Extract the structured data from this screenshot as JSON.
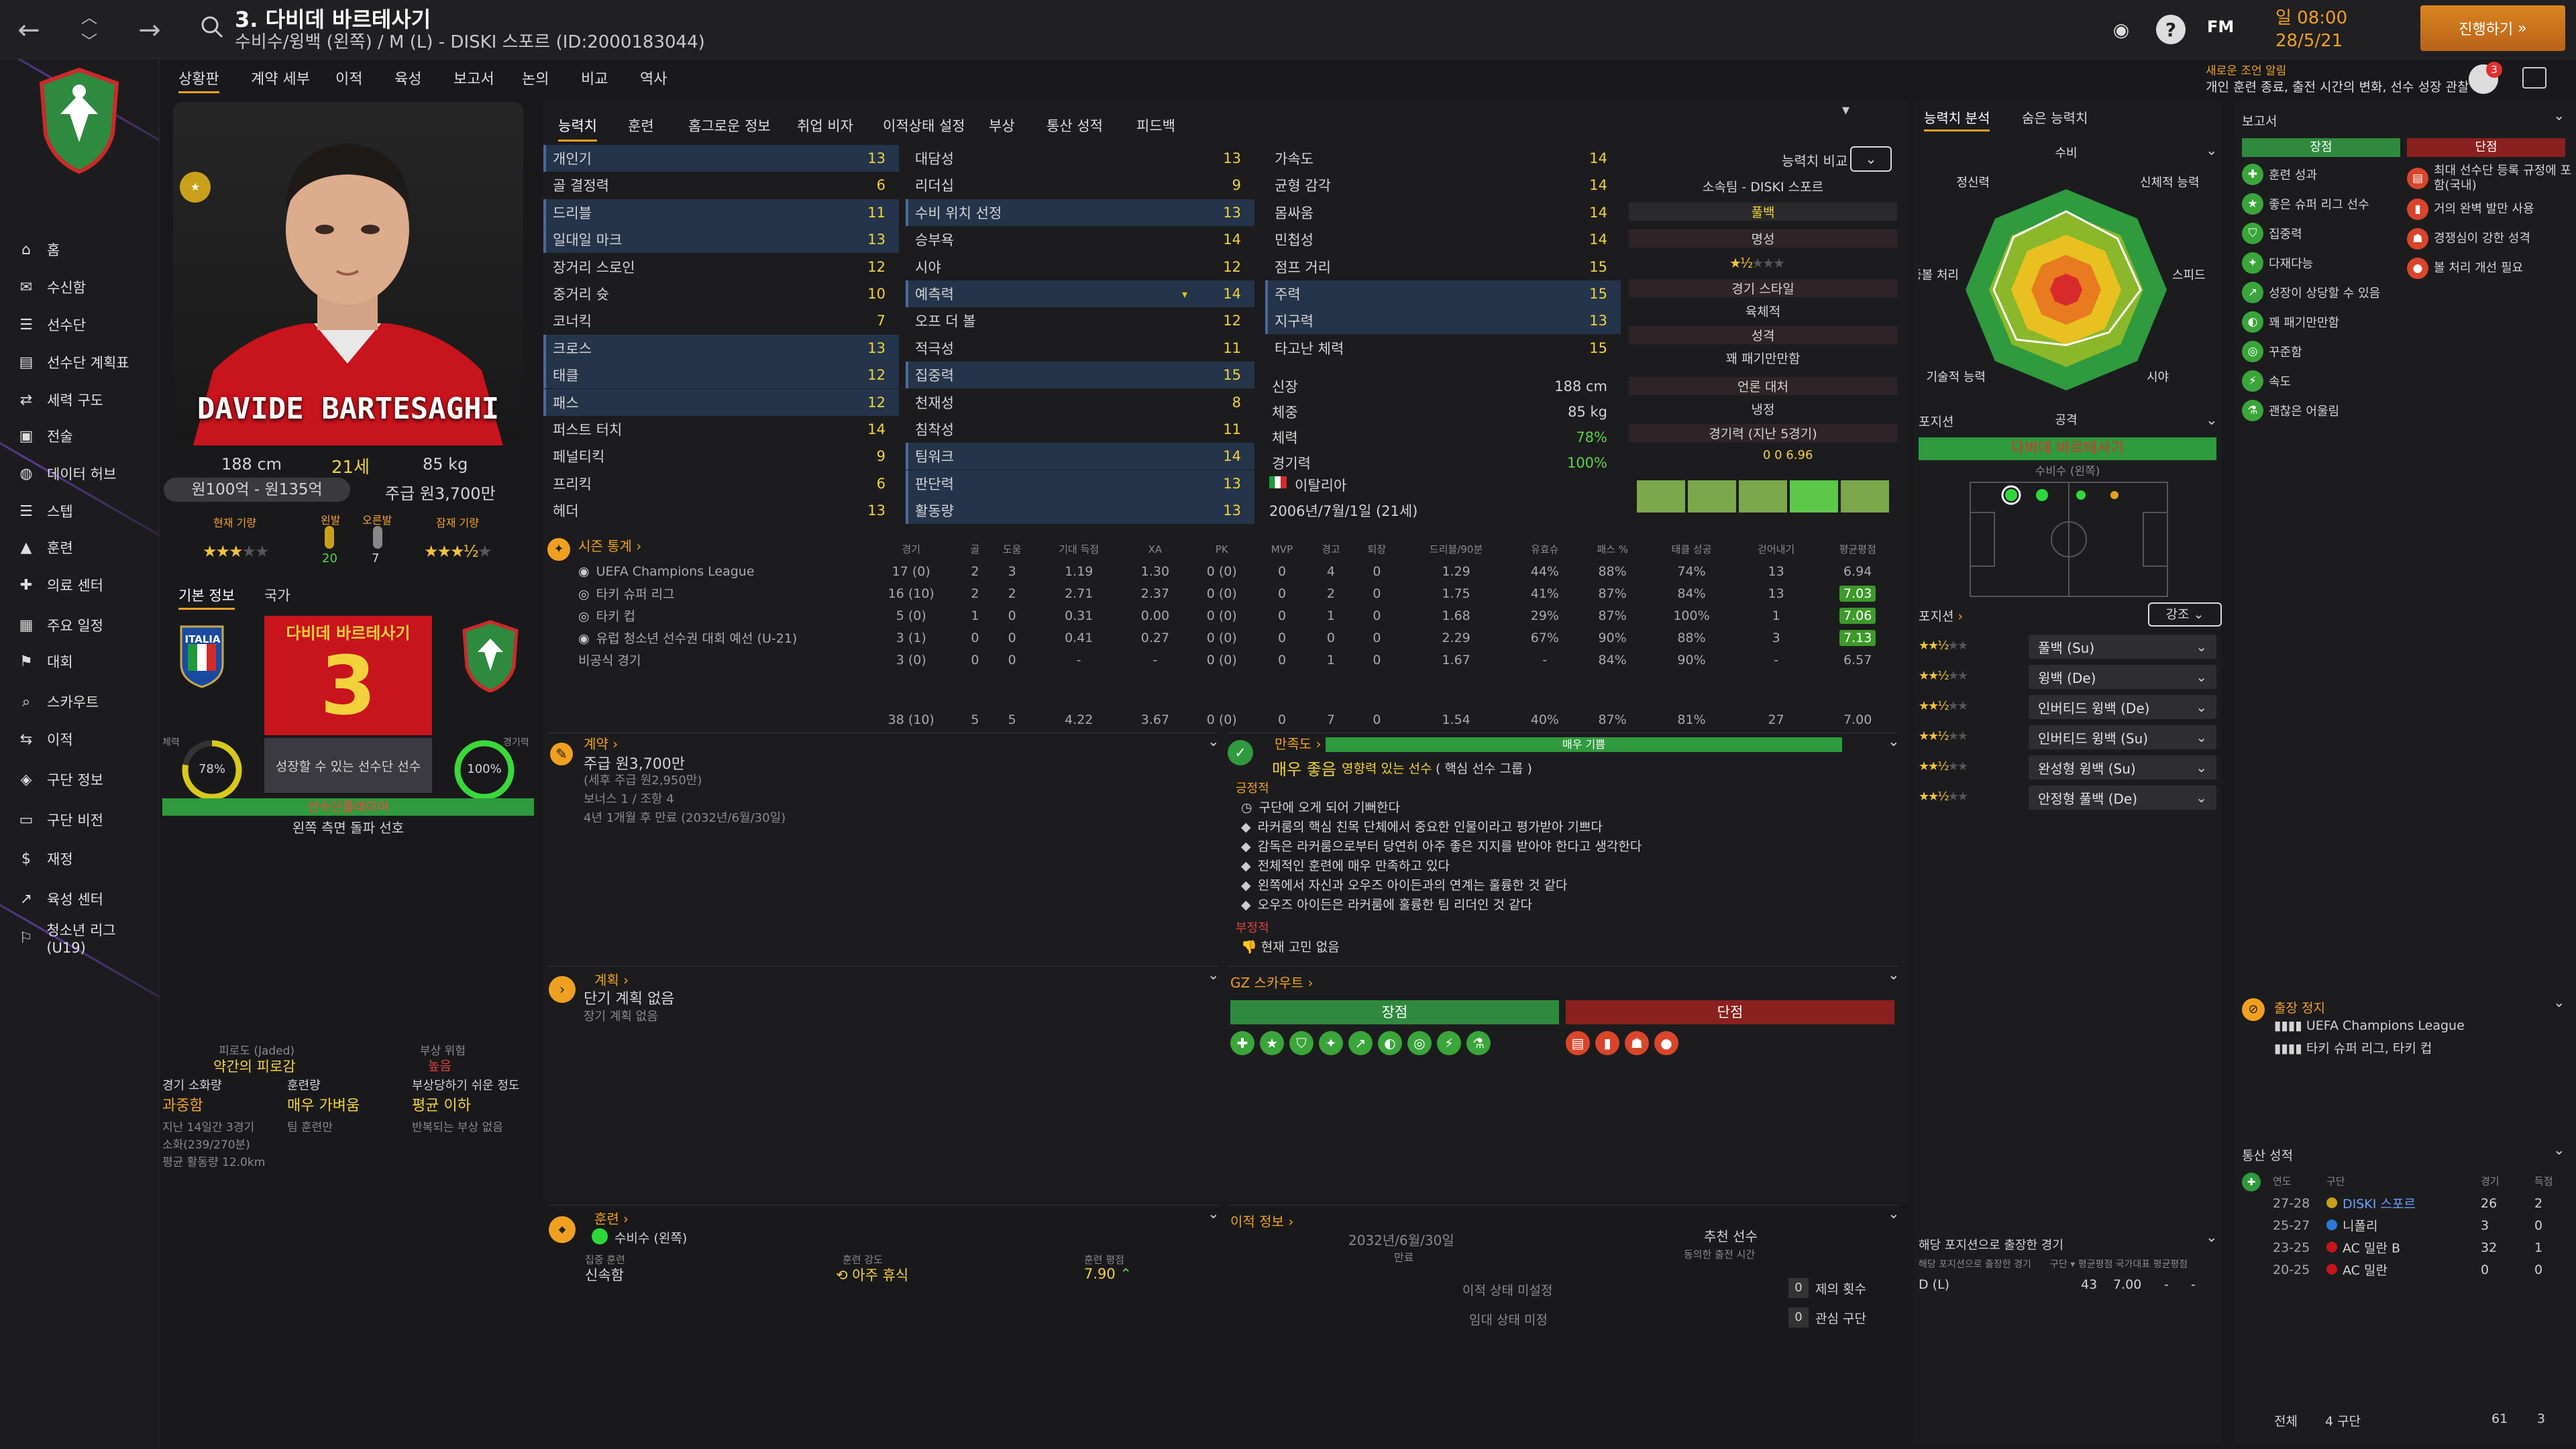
{
  "header": {
    "title": "3. 다비데 바르테사기",
    "subtitle": "수비수/윙백 (왼쪽) / M (L) - DISKI 스포르 (ID:2000183044)",
    "date_day": "일 08:00",
    "date": "28/5/21",
    "continue_label": "진행하기",
    "fm_label": "FM",
    "notice_title": "새로운 조언 알림",
    "notice_text": "개인 훈련 종료, 출전 시간의 변화, 선수 성장 관찰",
    "notif_count": "3"
  },
  "menu": [
    "상황판",
    "계약 세부",
    "이적",
    "육성",
    "보고서",
    "논의",
    "비교",
    "역사"
  ],
  "sidebar": [
    "홈",
    "수신함",
    "선수단",
    "선수단 계획표",
    "세력 구도",
    "전술",
    "데이터 허브",
    "스텝",
    "훈련",
    "의료 센터",
    "주요 일정",
    "대회",
    "스카우트",
    "이적",
    "구단 정보",
    "구단 비전",
    "재정",
    "육성 센터",
    "청소년 리그 (U19)"
  ],
  "player": {
    "name_en": "DAVIDE BARTESAGHI",
    "height": "188 cm",
    "age": "21세",
    "weight": "85 kg",
    "value": "원100억 - 원135억",
    "wage": "주급 원3,700만",
    "cur_ability": "현재 기량",
    "pot_ability": "잠재 기량",
    "left_foot_label": "왼발",
    "right_foot_label": "오른발",
    "left_foot": "20",
    "right_foot": "7",
    "tab_basic": "기본 정보",
    "tab_nation": "국가",
    "nation": "ITALIA",
    "shirt_name": "다비데 바르테사기",
    "shirt_number": "3",
    "stamina_label": "체력",
    "stamina": "78%",
    "sharp_label": "경기력",
    "sharp": "100%",
    "desc": "성장할 수 있는 선수단 선수",
    "role": "선수단플레이어",
    "pref": "왼쪽 측면 돌파 선호",
    "fatigue_label": "피로도 (Jaded)",
    "fatigue_val": "약간의 피로감",
    "injury_label": "부상 위험",
    "injury_val": "높음",
    "load_label": "경기 소화량",
    "load_val": "과중함",
    "train_label": "훈련량",
    "train_val": "매우 가벼움",
    "prone_label": "부상당하기 쉬운 정도",
    "prone_val": "평균 이하",
    "load_sub1": "지난 14일간 3경기",
    "load_sub2": "소화(239/270분)",
    "load_sub3": "평균 활동량 12.0km",
    "train_sub": "팀 훈련만",
    "prone_sub": "반복되는 부상 없음"
  },
  "attr_tabs": [
    "능력치",
    "훈련",
    "홈그로운 정보",
    "취업 비자",
    "이적상태 설정",
    "부상",
    "통산 성적",
    "피드백"
  ],
  "attrs_col1": [
    [
      "개인기",
      "13"
    ],
    [
      "골 결정력",
      "6"
    ],
    [
      "드리블",
      "11"
    ],
    [
      "일대일 마크",
      "13"
    ],
    [
      "장거리 스로인",
      "12"
    ],
    [
      "중거리 슛",
      "10"
    ],
    [
      "코너킥",
      "7"
    ],
    [
      "크로스",
      "13"
    ],
    [
      "태클",
      "12"
    ],
    [
      "패스",
      "12"
    ],
    [
      "퍼스트 터치",
      "14"
    ],
    [
      "페널티킥",
      "9"
    ],
    [
      "프리킥",
      "6"
    ],
    [
      "헤더",
      "13"
    ]
  ],
  "attrs_col2": [
    [
      "대담성",
      "13"
    ],
    [
      "리더십",
      "9"
    ],
    [
      "수비 위치 선정",
      "13"
    ],
    [
      "승부욕",
      "14"
    ],
    [
      "시야",
      "12"
    ],
    [
      "예측력",
      "14"
    ],
    [
      "오프 더 볼",
      "12"
    ],
    [
      "적극성",
      "11"
    ],
    [
      "집중력",
      "15"
    ],
    [
      "천재성",
      "8"
    ],
    [
      "침착성",
      "11"
    ],
    [
      "팀워크",
      "14"
    ],
    [
      "판단력",
      "13"
    ],
    [
      "활동량",
      "13"
    ]
  ],
  "attrs_col3": [
    [
      "가속도",
      "14"
    ],
    [
      "균형 감각",
      "14"
    ],
    [
      "몸싸움",
      "14"
    ],
    [
      "민첩성",
      "14"
    ],
    [
      "점프 거리",
      "15"
    ],
    [
      "주력",
      "15"
    ],
    [
      "지구력",
      "13"
    ],
    [
      "타고난 체력",
      "15"
    ]
  ],
  "phys": [
    [
      "신장",
      "188 cm"
    ],
    [
      "체중",
      "85 kg"
    ],
    [
      "체력",
      "78%"
    ],
    [
      "경기력",
      "100%"
    ]
  ],
  "nationality": "이탈리아",
  "dob": "2006년/7월/1일 (21세)",
  "compare": {
    "label": "능력치 비교",
    "club": "소속팀 - DISKI 스포르",
    "position": "풀백",
    "fame_label": "명성",
    "style_label": "경기 스타일",
    "style_val": "육체적",
    "pers_label": "성격",
    "pers_val": "꽤 패기만만함",
    "media_label": "언론 대처",
    "media_val": "냉정",
    "form_label": "경기력 (지난 5경기)",
    "form_vals": "0   0   6.96"
  },
  "stats": {
    "title": "시즌 통계",
    "cols": [
      "경기",
      "골",
      "도움",
      "기대 득점",
      "XA",
      "PK",
      "MVP",
      "경고",
      "퇴장",
      "드리블/90분",
      "유효슈",
      "패스 %",
      "태클 성공",
      "걷어내기",
      "평균평점"
    ],
    "rows": [
      [
        "UEFA Champions League",
        "17 (0)",
        "2",
        "3",
        "1.19",
        "1.30",
        "0 (0)",
        "0",
        "4",
        "0",
        "1.29",
        "44%",
        "88%",
        "74%",
        "13",
        "6.94"
      ],
      [
        "타키 슈퍼 리그",
        "16 (10)",
        "2",
        "2",
        "2.71",
        "2.37",
        "0 (0)",
        "0",
        "2",
        "0",
        "1.75",
        "41%",
        "87%",
        "84%",
        "13",
        "7.03"
      ],
      [
        "타키 컵",
        "5 (0)",
        "1",
        "0",
        "0.31",
        "0.00",
        "0 (0)",
        "0",
        "1",
        "0",
        "1.68",
        "29%",
        "87%",
        "100%",
        "1",
        "7.06"
      ],
      [
        "유럽 청소년 선수권 대회 예선 (U-21)",
        "3 (1)",
        "0",
        "0",
        "0.41",
        "0.27",
        "0 (0)",
        "0",
        "0",
        "0",
        "2.29",
        "67%",
        "90%",
        "88%",
        "3",
        "7.13"
      ],
      [
        "비공식 경기",
        "3 (0)",
        "0",
        "0",
        "-",
        "-",
        "0 (0)",
        "0",
        "1",
        "0",
        "1.67",
        "-",
        "84%",
        "90%",
        "-",
        "6.57"
      ]
    ],
    "total": [
      "38 (10)",
      "5",
      "5",
      "4.22",
      "3.67",
      "0 (0)",
      "0",
      "7",
      "0",
      "1.54",
      "40%",
      "87%",
      "81%",
      "27",
      "7.00"
    ]
  },
  "contract": {
    "title": "계약",
    "wage": "주급 원3,700만",
    "note": "(세후 주급 원2,950만)",
    "bonus": "보너스 1 / 조항 4",
    "expiry": "4년 1개월 후 만료 (2032년/6월/30일)"
  },
  "happy": {
    "title": "만족도",
    "value": "매우 좋음",
    "important": "영향력 있는 선수",
    "bar": "매우 기쁨",
    "role": "( 핵심 선수 그룹 )",
    "pos_label": "긍정적",
    "items": [
      "구단에 오게 되어 기뻐한다",
      "라커룸의 핵심 친목 단체에서 중요한 인물이라고 평가받아 기쁘다",
      "감독은 라커룸으로부터 당연히 아주 좋은 지지를 받아야 한다고 생각한다",
      "전체적인 훈련에 매우 만족하고 있다",
      "왼쪽에서 자신과 오우즈 아이든과의 연계는 훌륭한 것 같다",
      "오우즈 아이든은 라커룸에 훌륭한 팀 리더인 것 같다"
    ],
    "neg_label": "부정적",
    "neg_item": "현재 고민 없음"
  },
  "plan": {
    "title": "계획",
    "short": "단기 계획 없음",
    "long": "장기 계획 없음"
  },
  "gz": {
    "title": "GZ 스카우트",
    "strong": "장점",
    "weak": "단점"
  },
  "training": {
    "title": "훈련",
    "role": "수비수 (왼쪽)",
    "focus_label": "집중 훈련",
    "focus_val": "신속함",
    "intensity_label": "훈련 강도",
    "intensity_val": "아주 휴식",
    "rating_label": "훈련 평점",
    "rating_val": "7.90"
  },
  "transfer": {
    "title": "이적 정보",
    "date": "2032년/6월/30일",
    "date_label": "만료",
    "status1": "이적 상태 미설정",
    "status2": "임대 상태 미정",
    "rec_label": "추천 선수",
    "rec_sub": "동의한 출전 시간",
    "offers_label": "제의 횟수",
    "offers": "0",
    "interest_label": "관심 구단",
    "interest": "0"
  },
  "analysis": {
    "tabs": [
      "능력치 분석",
      "숨은 능력치"
    ],
    "labels": [
      "수비",
      "신체적 능력",
      "스피드",
      "시야",
      "공격",
      "기술적 능력",
      "공중볼 처리",
      "정신력"
    ],
    "pos_title": "포지션",
    "pos_name": "다비데 바르테사기",
    "pos_sub": "수비수 (왼쪽)",
    "roles_title": "포지션",
    "role_filter": "강조",
    "roles": [
      [
        "풀백 (Su)",
        2.5
      ],
      [
        "윙백 (De)",
        2.5
      ],
      [
        "인버티드 윙백 (De)",
        2.5
      ],
      [
        "인버티드 윙백 (Su)",
        2.5
      ],
      [
        "완성형 윙백 (Su)",
        2.5
      ],
      [
        "안정형 풀백 (De)",
        2.5
      ]
    ],
    "pos_played_title": "해당 포지션으로 출장한 경기",
    "pos_played_sub": "해당 포지션으로 출장한 경기",
    "pos_cols": "구단 ▾ 평균평점 국가대표 평균평점",
    "pos_row": [
      "D (L)",
      "43",
      "7.00",
      "-",
      "-"
    ]
  },
  "report": {
    "title": "보고서",
    "strong": "장점",
    "weak": "단점",
    "strengths": [
      "훈련 성과",
      "좋은 슈퍼 리그 선수",
      "집중력",
      "다재다능",
      "성장이 상당할 수 있음",
      "꽤 패기만만함",
      "꾸준함",
      "속도",
      "괜찮은 어울림"
    ],
    "weaknesses": [
      "최대 선수단 등록 규정에 포함(국내)",
      "거의 완벽 발만 사용",
      "경쟁심이 강한 성격",
      "볼 처리 개선 필요"
    ]
  },
  "suspension": {
    "title": "출장 정지",
    "items": [
      "UEFA Champions League",
      "타키 슈퍼 리그, 타키 컵"
    ]
  },
  "career": {
    "title": "통산 성적",
    "cols": [
      "연도",
      "구단",
      "경기",
      "득점"
    ],
    "rows": [
      [
        "27-28",
        "DISKI 스포르",
        "26",
        "2"
      ],
      [
        "25-27",
        "니폴리",
        "3",
        "0"
      ],
      [
        "23-25",
        "AC 밀란 B",
        "32",
        "1"
      ],
      [
        "20-25",
        "AC 밀란",
        "0",
        "0"
      ]
    ],
    "total_label": "전체",
    "total_clubs": "4 구단",
    "total_apps": "61",
    "total_goals": "3"
  },
  "colors": {
    "accent": "#f0a020",
    "green": "#5fd14a",
    "red": "#e04040",
    "shirt": "#c8141c"
  }
}
